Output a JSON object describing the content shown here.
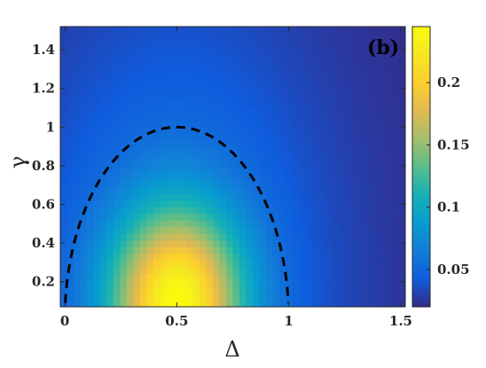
{
  "chart_data": {
    "type": "heatmap",
    "title": "",
    "panel_label": "(b)",
    "xlabel": "Δ",
    "ylabel": "γ",
    "xlim": [
      -0.02,
      1.52
    ],
    "ylim": [
      0.07,
      1.52
    ],
    "x_ticks": [
      0,
      0.5,
      1,
      1.5
    ],
    "x_tick_labels": [
      "0",
      "0.5",
      "1",
      "1.5"
    ],
    "y_ticks": [
      0.2,
      0.4,
      0.6,
      0.8,
      1,
      1.2,
      1.4
    ],
    "y_tick_labels": [
      "0.2",
      "0.4",
      "0.6",
      "0.8",
      "1",
      "1.2",
      "1.4"
    ],
    "grid": false,
    "colormap": "parula",
    "colorbar": {
      "range": [
        0.02,
        0.245
      ],
      "ticks": [
        0.05,
        0.1,
        0.15,
        0.2
      ],
      "tick_labels": [
        "0.05",
        "0.1",
        "0.15",
        "0.2"
      ]
    },
    "peak": {
      "x": 0.5,
      "y": 0.1,
      "value": 0.245
    },
    "grid_resolution": {
      "nx": 52,
      "ny": 42
    },
    "boundary_curve": {
      "style": "dashed",
      "color": "#000000",
      "shape": "semi-ellipse",
      "center_x": 0.5,
      "half_width": 0.5,
      "apex_y": 1.0,
      "y_start": 0.09
    }
  }
}
